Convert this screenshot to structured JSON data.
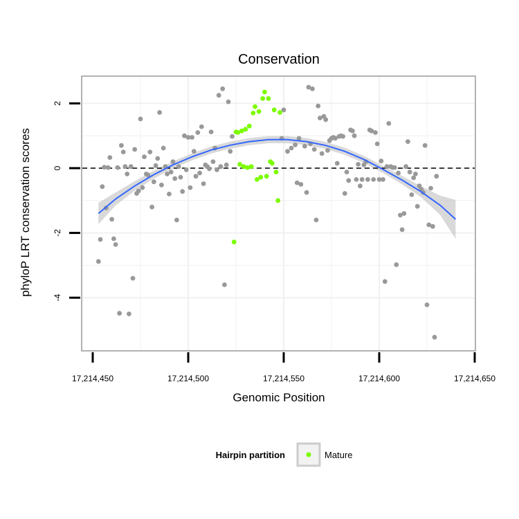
{
  "chart_data": {
    "type": "scatter",
    "title": "Conservation",
    "xlabel": "Genomic Position",
    "ylabel": "phyloP LRT conservation scores",
    "xlim": [
      17214451,
      17214642
    ],
    "ylim": [
      -5.35,
      2.85
    ],
    "x_ticks": [
      {
        "value": 17214450,
        "label": "17,214,450"
      },
      {
        "value": 17214500,
        "label": "17,214,500"
      },
      {
        "value": 17214550,
        "label": "17,214,550"
      },
      {
        "value": 17214600,
        "label": "17,214,600"
      },
      {
        "value": 17214650,
        "label": "17,214,650"
      }
    ],
    "y_ticks": [
      {
        "value": 2,
        "label": "2"
      },
      {
        "value": 0,
        "label": "0"
      },
      {
        "value": -2,
        "label": "-2"
      },
      {
        "value": -4,
        "label": "-4"
      }
    ],
    "grid": true,
    "reference_line": {
      "y": 0,
      "style": "dashed"
    },
    "legend": {
      "title": "Hairpin partition",
      "position": "bottom",
      "entries": [
        {
          "label": "Mature",
          "color": "#7cfc00"
        }
      ]
    },
    "colors": {
      "other": "#999999",
      "mature": "#7cfc00",
      "smooth": "#3366ff",
      "ribbon": "#cccccc",
      "panel": "#ffffff",
      "grid": "#f0f0f0"
    },
    "series": [
      {
        "name": "",
        "color": "#999999",
        "points": [
          [
            17214453,
            -2.88
          ],
          [
            17214454,
            -2.2
          ],
          [
            17214455,
            -0.57
          ],
          [
            17214456,
            0.03
          ],
          [
            17214457,
            -1.23
          ],
          [
            17214458,
            0.02
          ],
          [
            17214459,
            0.33
          ],
          [
            17214460,
            -1.58
          ],
          [
            17214461,
            -2.18
          ],
          [
            17214462,
            -2.36
          ],
          [
            17214463,
            0.02
          ],
          [
            17214464,
            -4.48
          ],
          [
            17214465,
            0.7
          ],
          [
            17214466,
            0.5
          ],
          [
            17214467,
            0.05
          ],
          [
            17214468,
            -0.18
          ],
          [
            17214469,
            -4.5
          ],
          [
            17214470,
            0.05
          ],
          [
            17214471,
            -3.4
          ],
          [
            17214472,
            0.58
          ],
          [
            17214473,
            -0.78
          ],
          [
            17214474,
            -0.7
          ],
          [
            17214475,
            1.52
          ],
          [
            17214476,
            -0.6
          ],
          [
            17214477,
            0.35
          ],
          [
            17214478,
            -0.18
          ],
          [
            17214479,
            -0.21
          ],
          [
            17214480,
            0.5
          ],
          [
            17214481,
            -1.2
          ],
          [
            17214482,
            -0.42
          ],
          [
            17214483,
            0.08
          ],
          [
            17214484,
            0.3
          ],
          [
            17214485,
            1.72
          ],
          [
            17214486,
            -0.52
          ],
          [
            17214487,
            0.62
          ],
          [
            17214488,
            0.05
          ],
          [
            17214489,
            -0.18
          ],
          [
            17214490,
            -0.8
          ],
          [
            17214491,
            -0.12
          ],
          [
            17214492,
            0.2
          ],
          [
            17214493,
            -0.32
          ],
          [
            17214494,
            -1.6
          ],
          [
            17214495,
            0.05
          ],
          [
            17214496,
            -0.28
          ],
          [
            17214497,
            -0.72
          ],
          [
            17214498,
            1.0
          ],
          [
            17214499,
            -0.05
          ],
          [
            17214500,
            0.95
          ],
          [
            17214501,
            -0.6
          ],
          [
            17214502,
            0.95
          ],
          [
            17214503,
            0.52
          ],
          [
            17214504,
            -0.25
          ],
          [
            17214505,
            1.1
          ],
          [
            17214506,
            -0.15
          ],
          [
            17214507,
            1.28
          ],
          [
            17214508,
            -0.48
          ],
          [
            17214509,
            0.1
          ],
          [
            17214510,
            0.05
          ],
          [
            17214511,
            -0.02
          ],
          [
            17214512,
            1.12
          ],
          [
            17214513,
            0.2
          ],
          [
            17214514,
            0.62
          ],
          [
            17214515,
            -0.05
          ],
          [
            17214516,
            2.25
          ],
          [
            17214517,
            0.05
          ],
          [
            17214518,
            2.45
          ],
          [
            17214519,
            -3.6
          ],
          [
            17214520,
            0.1
          ],
          [
            17214521,
            2.05
          ],
          [
            17214522,
            0.52
          ],
          [
            17214523,
            0.98
          ],
          [
            17214549,
            0.92
          ],
          [
            17214550,
            1.8
          ],
          [
            17214552,
            0.52
          ],
          [
            17214554,
            0.62
          ],
          [
            17214556,
            0.72
          ],
          [
            17214557,
            -0.45
          ],
          [
            17214558,
            0.92
          ],
          [
            17214559,
            -0.5
          ],
          [
            17214561,
            0.68
          ],
          [
            17214562,
            -0.75
          ],
          [
            17214563,
            2.5
          ],
          [
            17214564,
            0.75
          ],
          [
            17214565,
            2.45
          ],
          [
            17214566,
            0.58
          ],
          [
            17214567,
            -1.6
          ],
          [
            17214568,
            1.92
          ],
          [
            17214569,
            1.55
          ],
          [
            17214570,
            0.45
          ],
          [
            17214571,
            1.6
          ],
          [
            17214572,
            1.5
          ],
          [
            17214573,
            0.55
          ],
          [
            17214574,
            0.85
          ],
          [
            17214575,
            0.92
          ],
          [
            17214576,
            0.95
          ],
          [
            17214577,
            0.92
          ],
          [
            17214578,
            0.15
          ],
          [
            17214579,
            0.98
          ],
          [
            17214580,
            1.0
          ],
          [
            17214581,
            0.98
          ],
          [
            17214582,
            -0.78
          ],
          [
            17214583,
            -0.12
          ],
          [
            17214584,
            -0.38
          ],
          [
            17214585,
            1.18
          ],
          [
            17214586,
            1.15
          ],
          [
            17214587,
            1.0
          ],
          [
            17214588,
            -0.35
          ],
          [
            17214589,
            0.12
          ],
          [
            17214590,
            -0.55
          ],
          [
            17214591,
            -0.35
          ],
          [
            17214592,
            0.1
          ],
          [
            17214593,
            0.2
          ],
          [
            17214594,
            -0.35
          ],
          [
            17214595,
            1.18
          ],
          [
            17214596,
            1.15
          ],
          [
            17214597,
            -0.35
          ],
          [
            17214598,
            1.1
          ],
          [
            17214599,
            0.75
          ],
          [
            17214600,
            -0.35
          ],
          [
            17214601,
            0.22
          ],
          [
            17214602,
            -0.35
          ],
          [
            17214603,
            -3.5
          ],
          [
            17214604,
            0.05
          ],
          [
            17214605,
            1.38
          ],
          [
            17214606,
            0.05
          ],
          [
            17214607,
            0.02
          ],
          [
            17214608,
            0.02
          ],
          [
            17214609,
            -2.98
          ],
          [
            17214610,
            -0.15
          ],
          [
            17214611,
            -1.45
          ],
          [
            17214612,
            -1.9
          ],
          [
            17214613,
            -1.4
          ],
          [
            17214614,
            0.05
          ],
          [
            17214615,
            0.82
          ],
          [
            17214616,
            -0.12
          ],
          [
            17214617,
            -0.82
          ],
          [
            17214618,
            -0.3
          ],
          [
            17214619,
            -0.18
          ],
          [
            17214620,
            -1.18
          ],
          [
            17214621,
            -0.55
          ],
          [
            17214622,
            -0.65
          ],
          [
            17214623,
            -0.75
          ],
          [
            17214624,
            0.7
          ],
          [
            17214625,
            -4.22
          ],
          [
            17214626,
            -1.75
          ],
          [
            17214627,
            -0.62
          ],
          [
            17214628,
            -1.8
          ],
          [
            17214629,
            -5.22
          ],
          [
            17214630,
            -0.25
          ]
        ]
      },
      {
        "name": "Mature",
        "color": "#7cfc00",
        "points": [
          [
            17214524,
            -2.28
          ],
          [
            17214525,
            1.12
          ],
          [
            17214526,
            1.1
          ],
          [
            17214527,
            0.12
          ],
          [
            17214528,
            1.15
          ],
          [
            17214529,
            0.05
          ],
          [
            17214530,
            1.2
          ],
          [
            17214531,
            0.02
          ],
          [
            17214532,
            1.3
          ],
          [
            17214533,
            0.05
          ],
          [
            17214534,
            1.7
          ],
          [
            17214535,
            1.9
          ],
          [
            17214536,
            -0.35
          ],
          [
            17214537,
            1.75
          ],
          [
            17214538,
            -0.28
          ],
          [
            17214539,
            2.15
          ],
          [
            17214540,
            2.35
          ],
          [
            17214541,
            -0.25
          ],
          [
            17214542,
            2.15
          ],
          [
            17214543,
            0.2
          ],
          [
            17214544,
            0.15
          ],
          [
            17214545,
            1.8
          ],
          [
            17214546,
            -0.12
          ],
          [
            17214547,
            -1.0
          ],
          [
            17214548,
            1.72
          ]
        ]
      }
    ],
    "smooth": {
      "name": "",
      "x": [
        17214453,
        17214462,
        17214472,
        17214482,
        17214492,
        17214502,
        17214512,
        17214522,
        17214532,
        17214542,
        17214552,
        17214562,
        17214572,
        17214582,
        17214592,
        17214602,
        17214612,
        17214622,
        17214632,
        17214640
      ],
      "y": [
        -1.4,
        -0.95,
        -0.55,
        -0.2,
        0.1,
        0.35,
        0.56,
        0.71,
        0.82,
        0.88,
        0.88,
        0.82,
        0.7,
        0.52,
        0.27,
        -0.04,
        -0.37,
        -0.73,
        -1.15,
        -1.58
      ],
      "lower": [
        -1.73,
        -1.15,
        -0.7,
        -0.32,
        -0.01,
        0.24,
        0.45,
        0.6,
        0.71,
        0.77,
        0.77,
        0.71,
        0.59,
        0.41,
        0.16,
        -0.15,
        -0.5,
        -0.9,
        -1.45,
        -2.18
      ],
      "upper": [
        -1.07,
        -0.75,
        -0.4,
        -0.08,
        0.21,
        0.46,
        0.67,
        0.82,
        0.93,
        0.99,
        0.99,
        0.93,
        0.81,
        0.63,
        0.38,
        0.07,
        -0.24,
        -0.56,
        -0.85,
        -0.98
      ]
    }
  }
}
